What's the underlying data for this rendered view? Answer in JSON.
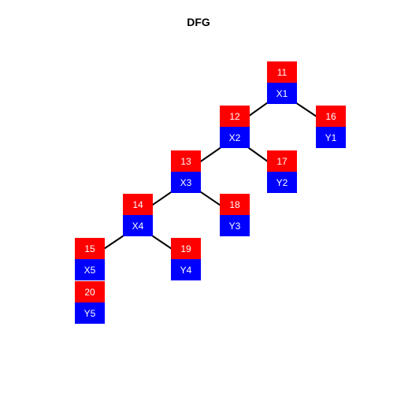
{
  "title": "DFG",
  "colors": {
    "id_fill": "#ff0000",
    "label_fill": "#0000ff",
    "text": "#ffffff",
    "edge": "#000000"
  },
  "nodes": [
    {
      "key": "n11",
      "id": "11",
      "label": "X1"
    },
    {
      "key": "n12",
      "id": "12",
      "label": "X2"
    },
    {
      "key": "n13",
      "id": "13",
      "label": "X3"
    },
    {
      "key": "n14",
      "id": "14",
      "label": "X4"
    },
    {
      "key": "n15",
      "id": "15",
      "label": "X5"
    },
    {
      "key": "n16",
      "id": "16",
      "label": "Y1"
    },
    {
      "key": "n17",
      "id": "17",
      "label": "Y2"
    },
    {
      "key": "n18",
      "id": "18",
      "label": "Y3"
    },
    {
      "key": "n19",
      "id": "19",
      "label": "Y4"
    },
    {
      "key": "n20",
      "id": "20",
      "label": "Y5"
    }
  ],
  "edges": [
    {
      "from": "11",
      "to": "12"
    },
    {
      "from": "11",
      "to": "16"
    },
    {
      "from": "12",
      "to": "13"
    },
    {
      "from": "12",
      "to": "17"
    },
    {
      "from": "13",
      "to": "14"
    },
    {
      "from": "13",
      "to": "18"
    },
    {
      "from": "14",
      "to": "15"
    },
    {
      "from": "14",
      "to": "19"
    },
    {
      "from": "15",
      "to": "20"
    }
  ]
}
